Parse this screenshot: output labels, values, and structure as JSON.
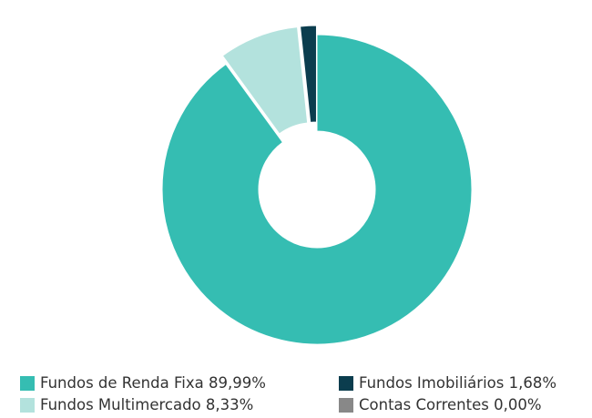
{
  "chart_data": {
    "type": "donut",
    "categories": [
      "Fundos de Renda Fixa",
      "Fundos Multimercado",
      "Fundos Imobiliários",
      "Contas Correntes"
    ],
    "values": [
      89.99,
      8.33,
      1.68,
      0
    ],
    "value_labels": [
      "89,99%",
      "8,33%",
      "1,68%",
      "0,00%"
    ],
    "colors": [
      "#35bdb2",
      "#b3e2dd",
      "#0b3d4e",
      "#888888"
    ]
  }
}
